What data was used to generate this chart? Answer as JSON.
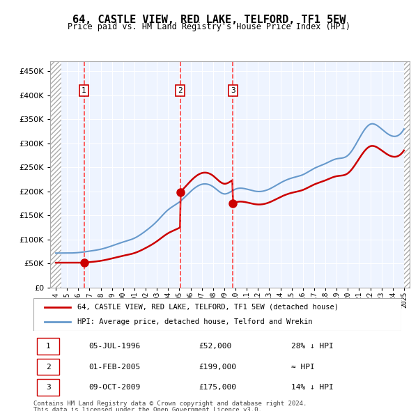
{
  "title": "64, CASTLE VIEW, RED LAKE, TELFORD, TF1 5EW",
  "subtitle": "Price paid vs. HM Land Registry's House Price Index (HPI)",
  "legend_line1": "64, CASTLE VIEW, RED LAKE, TELFORD, TF1 5EW (detached house)",
  "legend_line2": "HPI: Average price, detached house, Telford and Wrekin",
  "footer_line1": "Contains HM Land Registry data © Crown copyright and database right 2024.",
  "footer_line2": "This data is licensed under the Open Government Licence v3.0.",
  "sale_points": [
    {
      "label": "1",
      "date": "05-JUL-1996",
      "price": 52000,
      "x": 1996.51
    },
    {
      "label": "2",
      "date": "01-FEB-2005",
      "price": 199000,
      "x": 2005.08
    },
    {
      "label": "3",
      "date": "09-OCT-2009",
      "price": 175000,
      "x": 2009.77
    }
  ],
  "sale_table": [
    {
      "num": "1",
      "date": "05-JUL-1996",
      "price": "£52,000",
      "note": "28% ↓ HPI"
    },
    {
      "num": "2",
      "date": "01-FEB-2005",
      "price": "£199,000",
      "note": "≈ HPI"
    },
    {
      "num": "3",
      "date": "09-OCT-2009",
      "price": "£175,000",
      "note": "14% ↓ HPI"
    }
  ],
  "ylim": [
    0,
    470000
  ],
  "xlim_start": 1993.5,
  "xlim_end": 2025.5,
  "hpi_color": "#6699cc",
  "price_color": "#cc0000",
  "dashed_line_color": "#ff4444",
  "hatched_region_end": 1994.5,
  "background_color": "#ddeeff",
  "plot_bg_color": "#eef4ff"
}
